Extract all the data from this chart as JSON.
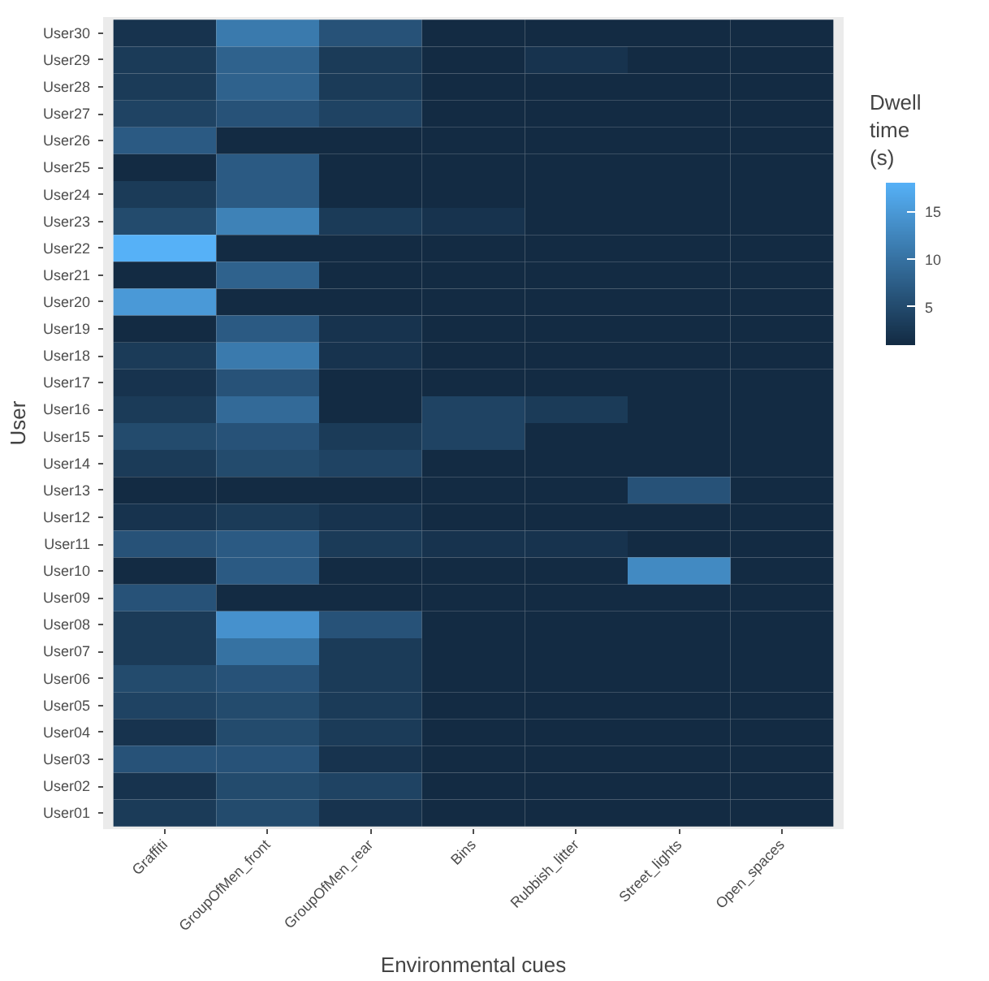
{
  "chart_data": {
    "type": "heatmap",
    "xlabel": "Environmental cues",
    "ylabel": "User",
    "clabel": "Dwell time (s)",
    "categories": [
      "Graffiti",
      "GroupOfMen_front",
      "GroupOfMen_rear",
      "Bins",
      "Rubbish_litter",
      "Street_lights",
      "Open_spaces"
    ],
    "y_categories": [
      "User30",
      "User29",
      "User28",
      "User27",
      "User26",
      "User25",
      "User24",
      "User23",
      "User22",
      "User21",
      "User20",
      "User19",
      "User18",
      "User17",
      "User16",
      "User15",
      "User14",
      "User13",
      "User12",
      "User11",
      "User10",
      "User09",
      "User08",
      "User07",
      "User06",
      "User05",
      "User04",
      "User03",
      "User02",
      "User01"
    ],
    "cells": [
      [
        2,
        11,
        6,
        1,
        1,
        1,
        1
      ],
      [
        3,
        8,
        3,
        1,
        2,
        1,
        1
      ],
      [
        3,
        8,
        3,
        1,
        1,
        1,
        1
      ],
      [
        4,
        6,
        4,
        1,
        1,
        1,
        1
      ],
      [
        7,
        1,
        1,
        1,
        1,
        1,
        1
      ],
      [
        1,
        7,
        1,
        1,
        1,
        1,
        1
      ],
      [
        3,
        7,
        1,
        1,
        1,
        1,
        1
      ],
      [
        5,
        12,
        3,
        2,
        1,
        1,
        1
      ],
      [
        18,
        1,
        1,
        1,
        1,
        1,
        1
      ],
      [
        1,
        8,
        1,
        1,
        1,
        1,
        1
      ],
      [
        15,
        1,
        1,
        1,
        1,
        1,
        1
      ],
      [
        1,
        7,
        2,
        1,
        1,
        1,
        1
      ],
      [
        3,
        11,
        2,
        1,
        1,
        1,
        1
      ],
      [
        2,
        6,
        1,
        1,
        1,
        1,
        1
      ],
      [
        3,
        9,
        1,
        4,
        3,
        1,
        1
      ],
      [
        5,
        6,
        3,
        4,
        1,
        1,
        1
      ],
      [
        3,
        5,
        4,
        1,
        1,
        1,
        1
      ],
      [
        1,
        1,
        1,
        1,
        1,
        6,
        1
      ],
      [
        2,
        3,
        2,
        1,
        1,
        1,
        1
      ],
      [
        6,
        7,
        3,
        2,
        2,
        1,
        1
      ],
      [
        1,
        7,
        1,
        1,
        1,
        13,
        1
      ],
      [
        6,
        1,
        1,
        1,
        1,
        1,
        1
      ],
      [
        3,
        14,
        6,
        1,
        1,
        1,
        1
      ],
      [
        3,
        10,
        3,
        1,
        1,
        1,
        1
      ],
      [
        5,
        6,
        3,
        1,
        1,
        1,
        1
      ],
      [
        4,
        5,
        3,
        1,
        1,
        1,
        1
      ],
      [
        2,
        5,
        3,
        1,
        1,
        1,
        1
      ],
      [
        6,
        6,
        2,
        1,
        1,
        1,
        1
      ],
      [
        2,
        5,
        4,
        1,
        1,
        1,
        1
      ],
      [
        3,
        5,
        2,
        1,
        1,
        1,
        1
      ]
    ],
    "colors": [
      "#132b43",
      "#56b1f7"
    ],
    "clim": [
      1,
      18
    ],
    "cticks": [
      5,
      10,
      15
    ]
  }
}
